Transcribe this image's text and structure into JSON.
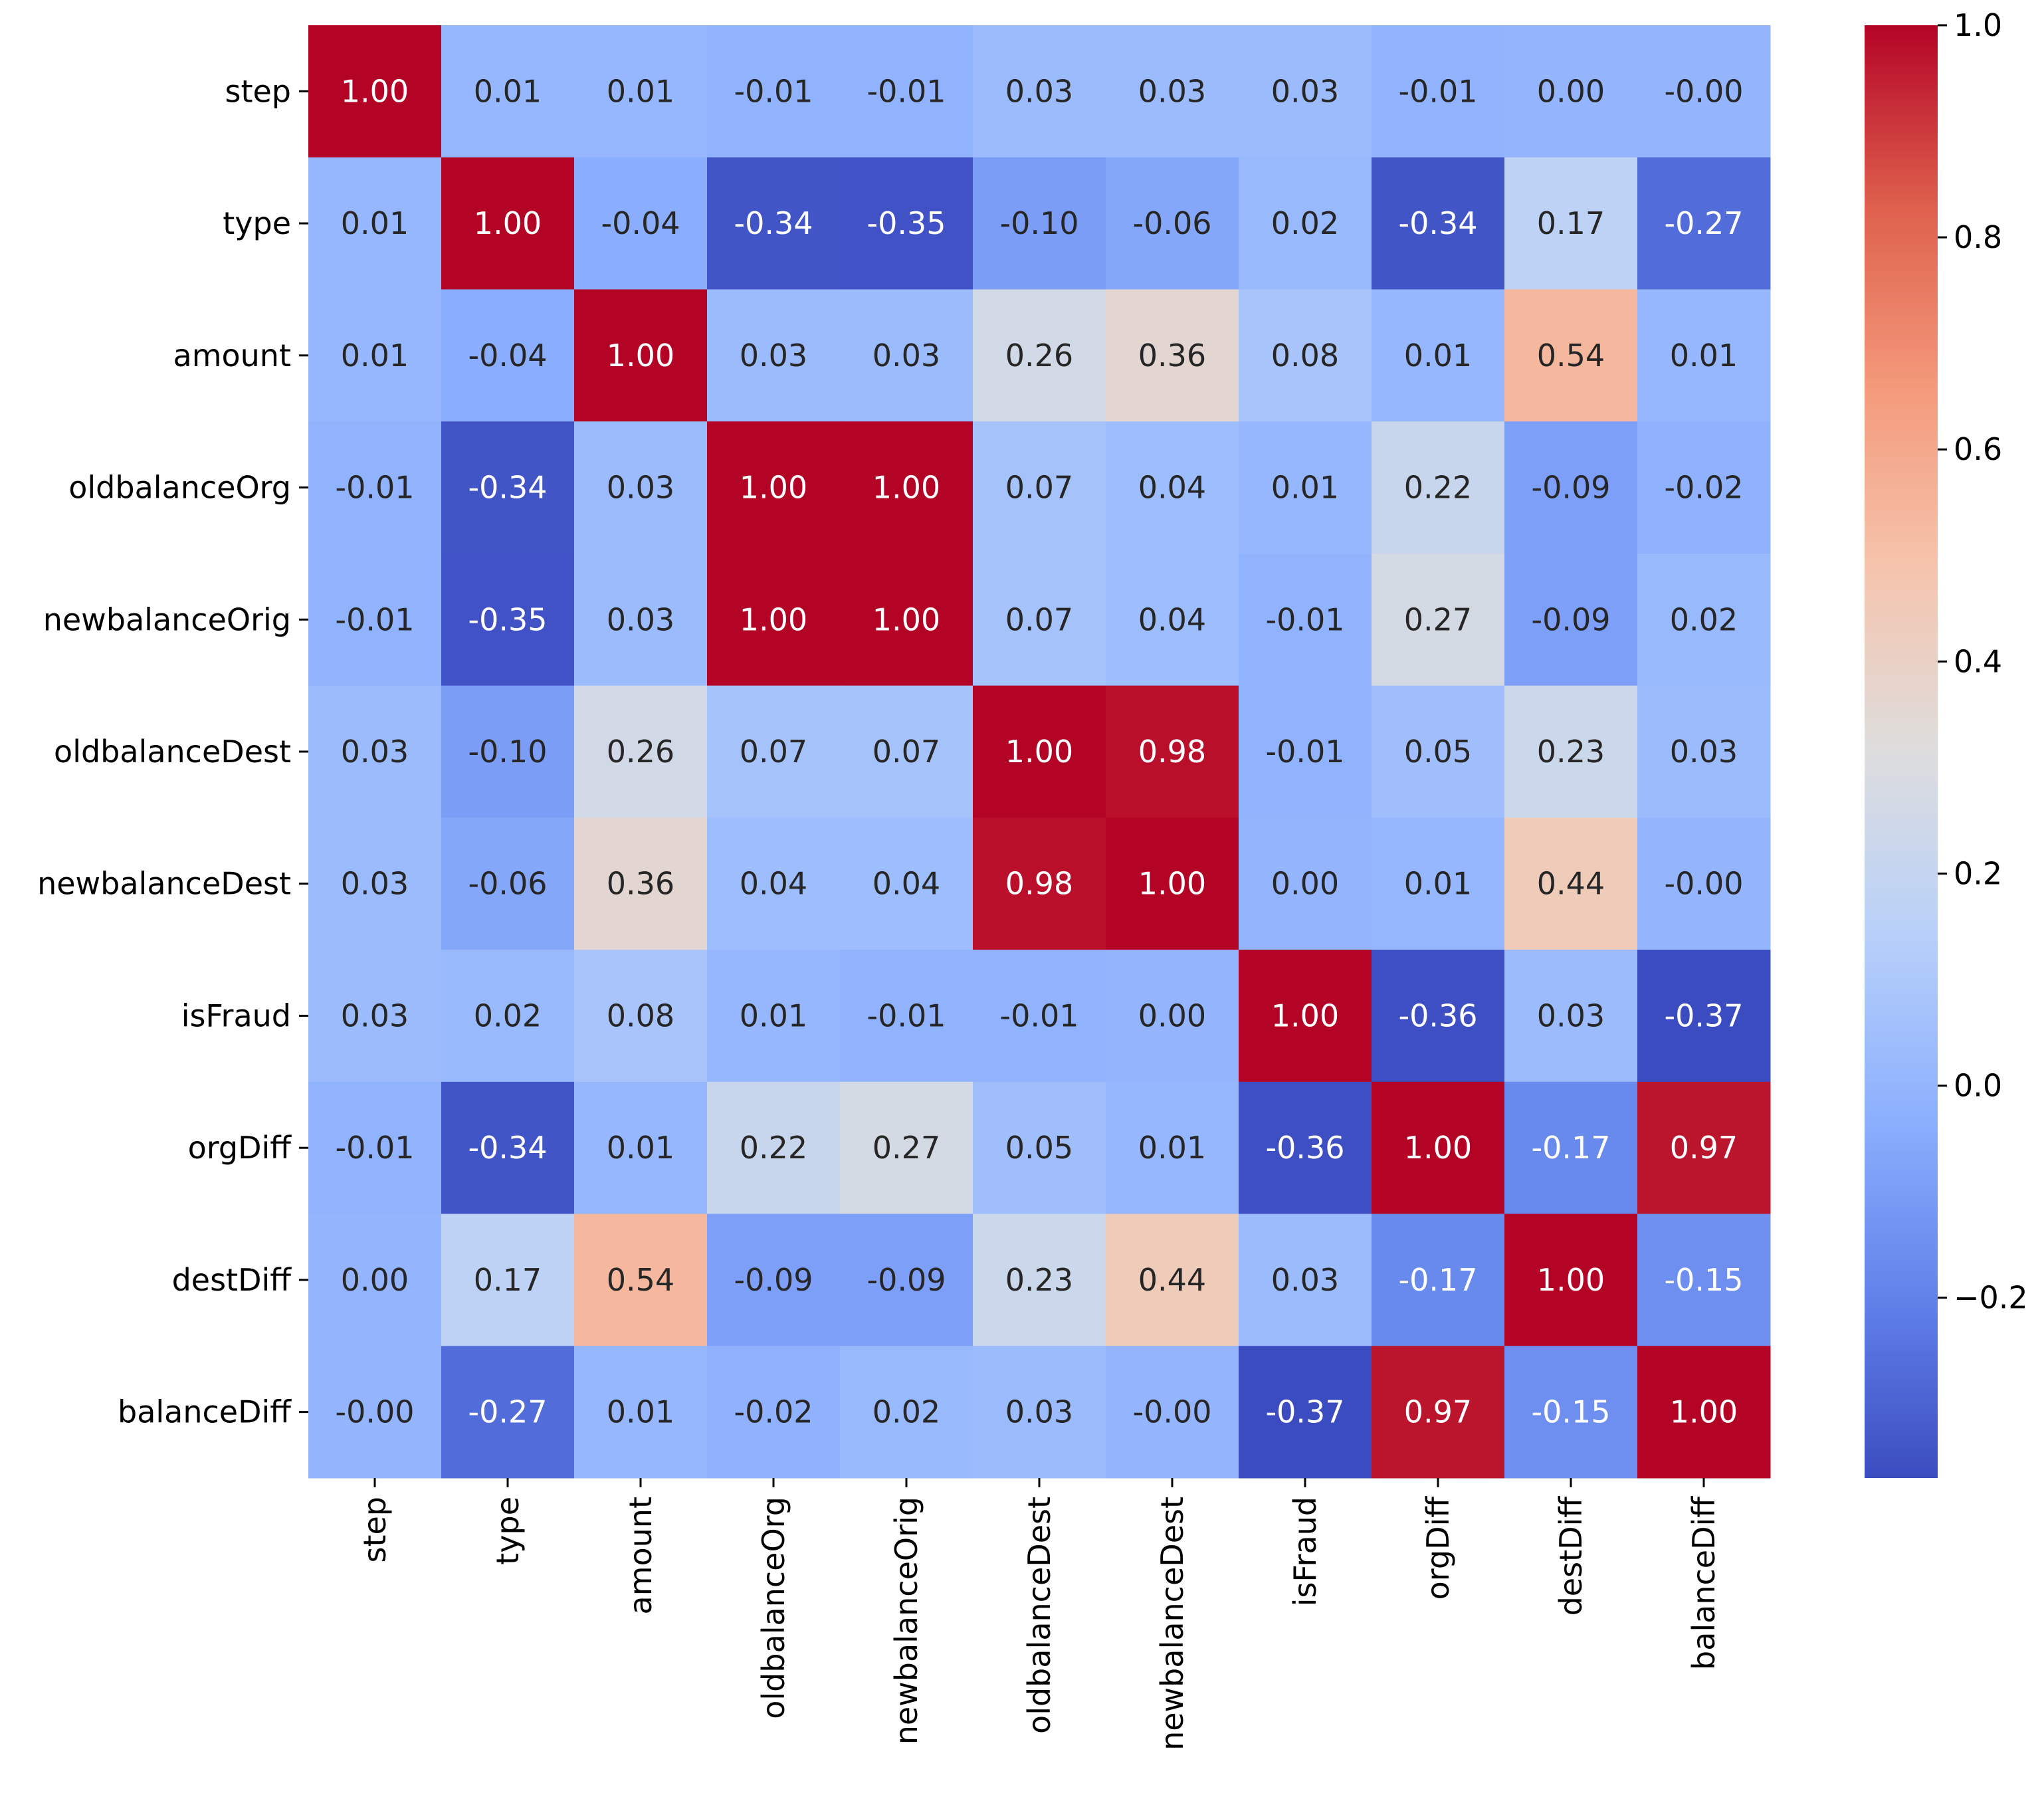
{
  "chart_data": {
    "type": "heatmap",
    "title": "",
    "xlabel": "",
    "ylabel": "",
    "rows": [
      "step",
      "type",
      "amount",
      "oldbalanceOrg",
      "newbalanceOrig",
      "oldbalanceDest",
      "newbalanceDest",
      "isFraud",
      "orgDiff",
      "destDiff",
      "balanceDiff"
    ],
    "columns": [
      "step",
      "type",
      "amount",
      "oldbalanceOrg",
      "newbalanceOrig",
      "oldbalanceDest",
      "newbalanceDest",
      "isFraud",
      "orgDiff",
      "destDiff",
      "balanceDiff"
    ],
    "values": [
      [
        1.0,
        0.01,
        0.01,
        -0.01,
        -0.01,
        0.03,
        0.03,
        0.03,
        -0.01,
        0.0,
        -0.0
      ],
      [
        0.01,
        1.0,
        -0.04,
        -0.34,
        -0.35,
        -0.1,
        -0.06,
        0.02,
        -0.34,
        0.17,
        -0.27
      ],
      [
        0.01,
        -0.04,
        1.0,
        0.03,
        0.03,
        0.26,
        0.36,
        0.08,
        0.01,
        0.54,
        0.01
      ],
      [
        -0.01,
        -0.34,
        0.03,
        1.0,
        1.0,
        0.07,
        0.04,
        0.01,
        0.22,
        -0.09,
        -0.02
      ],
      [
        -0.01,
        -0.35,
        0.03,
        1.0,
        1.0,
        0.07,
        0.04,
        -0.01,
        0.27,
        -0.09,
        0.02
      ],
      [
        0.03,
        -0.1,
        0.26,
        0.07,
        0.07,
        1.0,
        0.98,
        -0.01,
        0.05,
        0.23,
        0.03
      ],
      [
        0.03,
        -0.06,
        0.36,
        0.04,
        0.04,
        0.98,
        1.0,
        0.0,
        0.01,
        0.44,
        -0.0
      ],
      [
        0.03,
        0.02,
        0.08,
        0.01,
        -0.01,
        -0.01,
        0.0,
        1.0,
        -0.36,
        0.03,
        -0.37
      ],
      [
        -0.01,
        -0.34,
        0.01,
        0.22,
        0.27,
        0.05,
        0.01,
        -0.36,
        1.0,
        -0.17,
        0.97
      ],
      [
        0.0,
        0.17,
        0.54,
        -0.09,
        -0.09,
        0.23,
        0.44,
        0.03,
        -0.17,
        1.0,
        -0.15
      ],
      [
        -0.0,
        -0.27,
        0.01,
        -0.02,
        0.02,
        0.03,
        -0.0,
        -0.37,
        0.97,
        -0.15,
        1.0
      ]
    ],
    "cell_labels": [
      [
        "1.00",
        "0.01",
        "0.01",
        "-0.01",
        "-0.01",
        "0.03",
        "0.03",
        "0.03",
        "-0.01",
        "0.00",
        "-0.00"
      ],
      [
        "0.01",
        "1.00",
        "-0.04",
        "-0.34",
        "-0.35",
        "-0.10",
        "-0.06",
        "0.02",
        "-0.34",
        "0.17",
        "-0.27"
      ],
      [
        "0.01",
        "-0.04",
        "1.00",
        "0.03",
        "0.03",
        "0.26",
        "0.36",
        "0.08",
        "0.01",
        "0.54",
        "0.01"
      ],
      [
        "-0.01",
        "-0.34",
        "0.03",
        "1.00",
        "1.00",
        "0.07",
        "0.04",
        "0.01",
        "0.22",
        "-0.09",
        "-0.02"
      ],
      [
        "-0.01",
        "-0.35",
        "0.03",
        "1.00",
        "1.00",
        "0.07",
        "0.04",
        "-0.01",
        "0.27",
        "-0.09",
        "0.02"
      ],
      [
        "0.03",
        "-0.10",
        "0.26",
        "0.07",
        "0.07",
        "1.00",
        "0.98",
        "-0.01",
        "0.05",
        "0.23",
        "0.03"
      ],
      [
        "0.03",
        "-0.06",
        "0.36",
        "0.04",
        "0.04",
        "0.98",
        "1.00",
        "0.00",
        "0.01",
        "0.44",
        "-0.00"
      ],
      [
        "0.03",
        "0.02",
        "0.08",
        "0.01",
        "-0.01",
        "-0.01",
        "0.00",
        "1.00",
        "-0.36",
        "0.03",
        "-0.37"
      ],
      [
        "-0.01",
        "-0.34",
        "0.01",
        "0.22",
        "0.27",
        "0.05",
        "0.01",
        "-0.36",
        "1.00",
        "-0.17",
        "0.97"
      ],
      [
        "0.00",
        "0.17",
        "0.54",
        "-0.09",
        "-0.09",
        "0.23",
        "0.44",
        "0.03",
        "-0.17",
        "1.00",
        "-0.15"
      ],
      [
        "-0.00",
        "-0.27",
        "0.01",
        "-0.02",
        "0.02",
        "0.03",
        "-0.00",
        "-0.37",
        "0.97",
        "-0.15",
        "1.00"
      ]
    ],
    "colormap": "coolwarm",
    "vmin": -0.37,
    "vmax": 1.0,
    "colorbar": {
      "ticks": [
        1.0,
        0.8,
        0.6,
        0.4,
        0.2,
        0.0,
        -0.2
      ],
      "tick_labels": [
        "1.0",
        "0.8",
        "0.6",
        "0.4",
        "0.2",
        "0.0",
        "−0.2"
      ]
    },
    "grid": false,
    "legend": "colorbar-right"
  }
}
